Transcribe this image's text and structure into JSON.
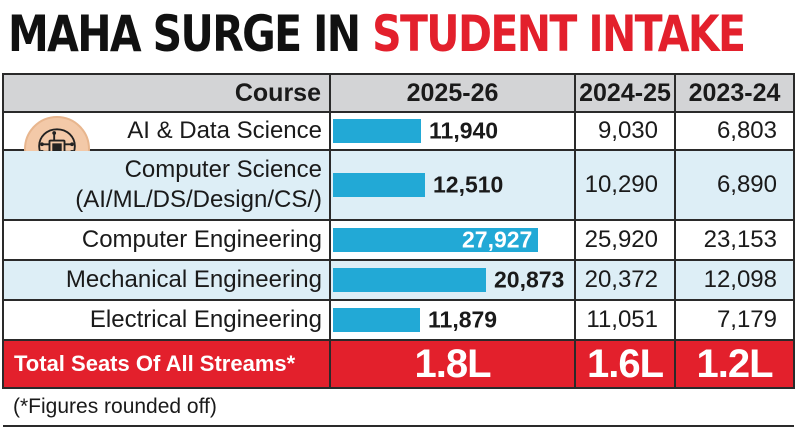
{
  "headline": {
    "part1": "MAHA SURGE IN",
    "part2": "STUDENT INTAKE",
    "accent_color": "#e3202c"
  },
  "table": {
    "headers": [
      "Course",
      "2025-26",
      "2024-25",
      "2023-24"
    ],
    "rows": [
      {
        "course": "AI & Data Science",
        "v2025": "11,940",
        "v2024": "9,030",
        "v2023": "6,803"
      },
      {
        "course_line1": "Computer Science",
        "course_line2": "(AI/ML/DS/Design/CS/)",
        "v2025": "12,510",
        "v2024": "10,290",
        "v2023": "6,890"
      },
      {
        "course": "Computer Engineering",
        "v2025": "27,927",
        "v2024": "25,920",
        "v2023": "23,153"
      },
      {
        "course": "Mechanical Engineering",
        "v2025": "20,873",
        "v2024": "20,372",
        "v2023": "12,098"
      },
      {
        "course": "Electrical Engineering",
        "v2025": "11,879",
        "v2024": "11,051",
        "v2023": "7,179"
      }
    ],
    "total": {
      "label": "Total Seats Of All Streams*",
      "v2025": "1.8L",
      "v2024": "1.6L",
      "v2023": "1.2L"
    },
    "footnote": "(*Figures rounded off)",
    "icon": "ai-brain-chip-icon"
  },
  "chart_data": {
    "type": "bar",
    "categories": [
      "AI & Data Science",
      "Computer Science (AI/ML/DS/Design/CS/)",
      "Computer Engineering",
      "Mechanical Engineering",
      "Electrical Engineering"
    ],
    "series": [
      {
        "name": "2025-26",
        "values": [
          11940,
          12510,
          27927,
          20873,
          11879
        ]
      },
      {
        "name": "2024-25",
        "values": [
          9030,
          10290,
          25920,
          20372,
          11051
        ]
      },
      {
        "name": "2023-24",
        "values": [
          6803,
          6890,
          23153,
          12098,
          7179
        ]
      }
    ],
    "bar_color": "#22a9d6",
    "bar_series": "2025-26",
    "title": "MAHA SURGE IN STUDENT INTAKE",
    "xlabel": "",
    "ylabel": ""
  }
}
